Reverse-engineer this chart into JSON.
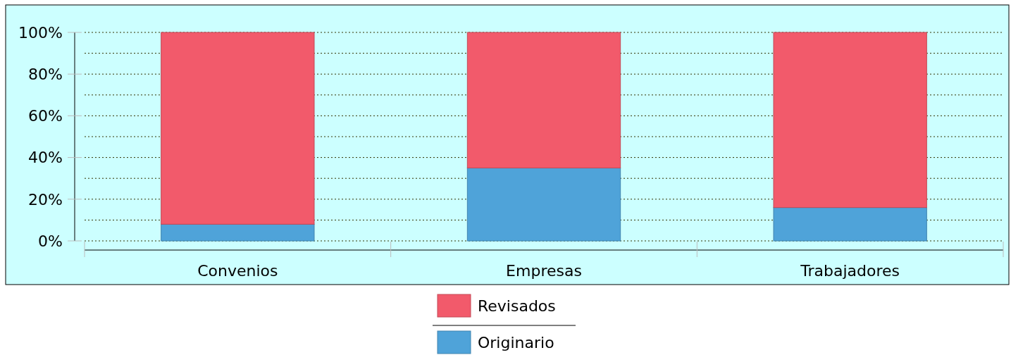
{
  "chart_data": {
    "type": "bar",
    "stacked": true,
    "categories": [
      "Convenios",
      "Empresas",
      "Trabajadores"
    ],
    "series": [
      {
        "name": "Originario",
        "color": "#4fa3d9",
        "values": [
          8,
          35,
          16
        ]
      },
      {
        "name": "Revisados",
        "color": "#f25a6b",
        "values": [
          92,
          65,
          84
        ]
      }
    ],
    "ylim": [
      0,
      100
    ],
    "yticks": [
      {
        "value": 0,
        "label": "0%"
      },
      {
        "value": 10,
        "label": null
      },
      {
        "value": 20,
        "label": "20%"
      },
      {
        "value": 30,
        "label": null
      },
      {
        "value": 40,
        "label": "40%"
      },
      {
        "value": 50,
        "label": null
      },
      {
        "value": 60,
        "label": "60%"
      },
      {
        "value": 70,
        "label": null
      },
      {
        "value": 80,
        "label": "80%"
      },
      {
        "value": 90,
        "label": null
      },
      {
        "value": 100,
        "label": "100%"
      }
    ],
    "grid": "y",
    "legend": "bottom"
  }
}
